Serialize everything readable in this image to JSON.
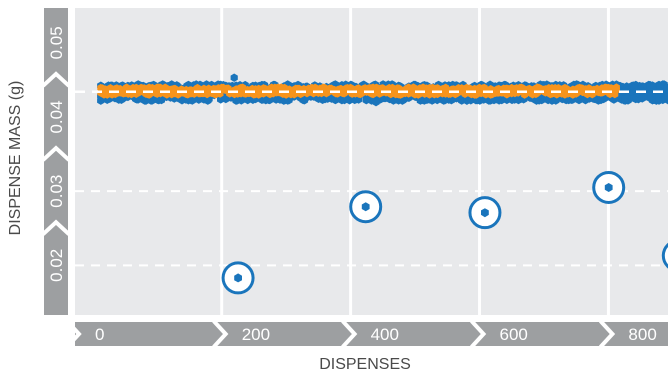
{
  "chart_data": {
    "type": "scatter",
    "xlabel": "DISPENSES",
    "ylabel": "DISPENSE MASS (g)",
    "xlim": [
      -40,
      880
    ],
    "ylim": [
      0.0133,
      0.0547
    ],
    "x_ticks": [
      0,
      200,
      400,
      600,
      800
    ],
    "x_tick_labels": [
      "0",
      "200",
      "400",
      "600",
      "800"
    ],
    "y_ticks": [
      0.02,
      0.03,
      0.04,
      0.05
    ],
    "y_tick_labels": [
      "0.02",
      "0.03",
      "0.04",
      "0.05"
    ],
    "grid": "white vertical lines at x ticks; white dashed horizontal lines at 0.02 and 0.03",
    "target_line": {
      "value": 0.0434,
      "style": "dashed",
      "color": "#ffffff"
    },
    "series": [
      {
        "color": "#1a75bc",
        "band": {
          "x_range": [
            0,
            880
          ],
          "center": 0.0433,
          "spread": 0.0011
        },
        "outliers": [
          {
            "x": 207,
            "y": 0.0453
          },
          {
            "x": 427,
            "y": 0.042
          }
        ],
        "circled_points": [
          {
            "x": 213,
            "y": 0.0183
          },
          {
            "x": 411,
            "y": 0.0279
          },
          {
            "x": 596,
            "y": 0.0271
          },
          {
            "x": 788,
            "y": 0.0305
          },
          {
            "x": 896,
            "y": 0.0213
          }
        ]
      },
      {
        "color": "#f7941d",
        "band": {
          "x_range": [
            0,
            800
          ],
          "center": 0.0435,
          "spread": 0.0005
        }
      }
    ],
    "colors": {
      "plot_background": "#e8e9eb",
      "axis_band": "#9d9fa1",
      "blue": "#1a75bc",
      "orange": "#f7941d"
    }
  }
}
